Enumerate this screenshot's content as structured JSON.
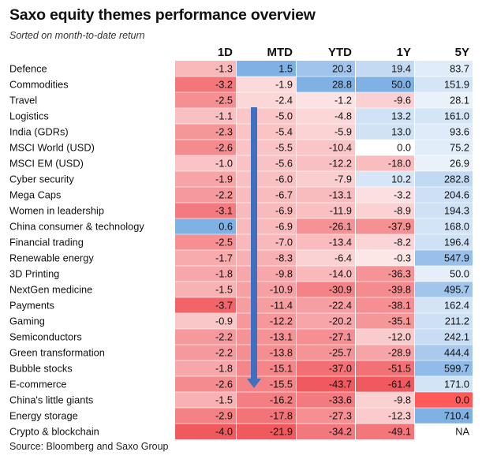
{
  "title": "Saxo equity themes performance overview",
  "subtitle": "Sorted on month-to-date return",
  "source": "Source: Bloomberg and Saxo Group",
  "chart_data": {
    "type": "heatmap",
    "columns": [
      "1D",
      "MTD",
      "YTD",
      "1Y",
      "5Y"
    ],
    "rows": [
      {
        "name": "Defence",
        "values": [
          "-1.3",
          "1.5",
          "20.3",
          "19.4",
          "83.7"
        ]
      },
      {
        "name": "Commodities",
        "values": [
          "-3.2",
          "-1.9",
          "28.8",
          "50.0",
          "151.9"
        ]
      },
      {
        "name": "Travel",
        "values": [
          "-2.5",
          "-2.4",
          "-1.2",
          "-9.6",
          "28.1"
        ]
      },
      {
        "name": "Logistics",
        "values": [
          "-1.1",
          "-5.0",
          "-4.8",
          "13.2",
          "161.0"
        ]
      },
      {
        "name": "India (GDRs)",
        "values": [
          "-2.3",
          "-5.4",
          "-5.9",
          "13.0",
          "93.6"
        ]
      },
      {
        "name": "MSCI World (USD)",
        "values": [
          "-2.6",
          "-5.5",
          "-10.4",
          "0.0",
          "75.2"
        ]
      },
      {
        "name": "MSCI EM (USD)",
        "values": [
          "-1.0",
          "-5.6",
          "-12.2",
          "-18.0",
          "26.9"
        ]
      },
      {
        "name": "Cyber security",
        "values": [
          "-1.9",
          "-6.0",
          "-7.9",
          "10.2",
          "282.8"
        ]
      },
      {
        "name": "Mega Caps",
        "values": [
          "-2.2",
          "-6.7",
          "-13.1",
          "-3.2",
          "204.6"
        ]
      },
      {
        "name": "Women in leadership",
        "values": [
          "-3.1",
          "-6.9",
          "-11.9",
          "-8.9",
          "194.3"
        ]
      },
      {
        "name": "China consumer & technology",
        "values": [
          "0.6",
          "-6.9",
          "-26.1",
          "-37.9",
          "168.0"
        ]
      },
      {
        "name": "Financial trading",
        "values": [
          "-2.5",
          "-7.0",
          "-13.4",
          "-8.2",
          "196.4"
        ]
      },
      {
        "name": "Renewable energy",
        "values": [
          "-1.7",
          "-8.3",
          "-6.4",
          "-0.3",
          "547.9"
        ]
      },
      {
        "name": "3D Printing",
        "values": [
          "-1.8",
          "-9.8",
          "-14.0",
          "-36.3",
          "50.0"
        ]
      },
      {
        "name": "NextGen medicine",
        "values": [
          "-1.5",
          "-10.9",
          "-30.9",
          "-39.8",
          "495.7"
        ]
      },
      {
        "name": "Payments",
        "values": [
          "-3.7",
          "-11.4",
          "-22.4",
          "-38.1",
          "162.4"
        ]
      },
      {
        "name": "Gaming",
        "values": [
          "-0.9",
          "-12.2",
          "-20.2",
          "-35.1",
          "211.2"
        ]
      },
      {
        "name": "Semiconductors",
        "values": [
          "-2.2",
          "-13.1",
          "-27.1",
          "-12.0",
          "242.1"
        ]
      },
      {
        "name": "Green transformation",
        "values": [
          "-2.2",
          "-13.8",
          "-25.7",
          "-28.9",
          "444.4"
        ]
      },
      {
        "name": "Bubble stocks",
        "values": [
          "-1.8",
          "-15.1",
          "-37.0",
          "-51.5",
          "599.7"
        ]
      },
      {
        "name": "E-commerce",
        "values": [
          "-2.6",
          "-15.5",
          "-43.7",
          "-61.4",
          "171.0"
        ]
      },
      {
        "name": "China's little giants",
        "values": [
          "-1.5",
          "-16.2",
          "-33.6",
          "-9.8",
          "0.0"
        ]
      },
      {
        "name": "Energy storage",
        "values": [
          "-2.9",
          "-17.8",
          "-27.3",
          "-12.3",
          "710.4"
        ]
      },
      {
        "name": "Crypto & blockchain",
        "values": [
          "-4.0",
          "-21.9",
          "-34.2",
          "-49.1",
          "NA"
        ]
      }
    ],
    "overrides": [
      {
        "row": 21,
        "col": 4,
        "color": "#ff5a5a"
      }
    ],
    "colors": {
      "negative": "#f05a5f",
      "positive": "#4a8fd9",
      "neutral": "#ffffff",
      "arrow": "#3f6fbf"
    }
  }
}
